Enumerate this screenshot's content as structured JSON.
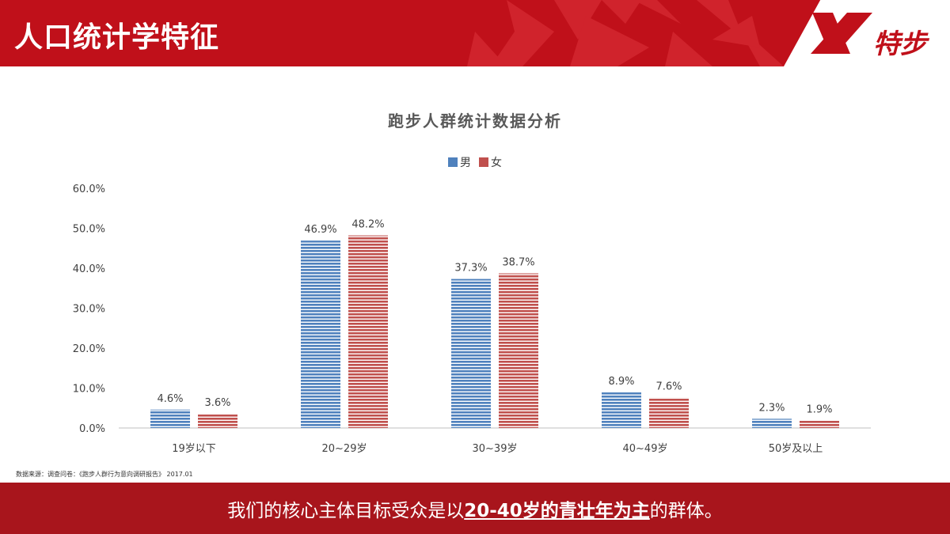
{
  "header": {
    "title": "人口统计学特征",
    "logo_text": "特步"
  },
  "source_note": "数据来源：调查问卷：《跑步人群行为意向调研报告》 2017.01",
  "footer": {
    "prefix": "我们的核心主体目标受众是以",
    "emphasis": "20-40岁的青壮年为主",
    "suffix": "的群体。"
  },
  "colors": {
    "brand_red": "#c0101a",
    "male": "#4f81bd",
    "female": "#c0504d"
  },
  "chart_data": {
    "type": "bar",
    "title": "跑步人群统计数据分析",
    "categories": [
      "19岁以下",
      "20~29岁",
      "30~39岁",
      "40~49岁",
      "50岁及以上"
    ],
    "series": [
      {
        "name": "男",
        "values": [
          4.6,
          46.9,
          37.3,
          8.9,
          2.3
        ],
        "labels": [
          "4.6%",
          "46.9%",
          "37.3%",
          "8.9%",
          "2.3%"
        ]
      },
      {
        "name": "女",
        "values": [
          3.6,
          48.2,
          38.7,
          7.6,
          1.9
        ],
        "labels": [
          "3.6%",
          "48.2%",
          "38.7%",
          "7.6%",
          "1.9%"
        ]
      }
    ],
    "yticks": [
      "0.0%",
      "10.0%",
      "20.0%",
      "30.0%",
      "40.0%",
      "50.0%",
      "60.0%"
    ],
    "ylim": [
      0,
      60
    ],
    "legend": "top",
    "grid": false
  }
}
